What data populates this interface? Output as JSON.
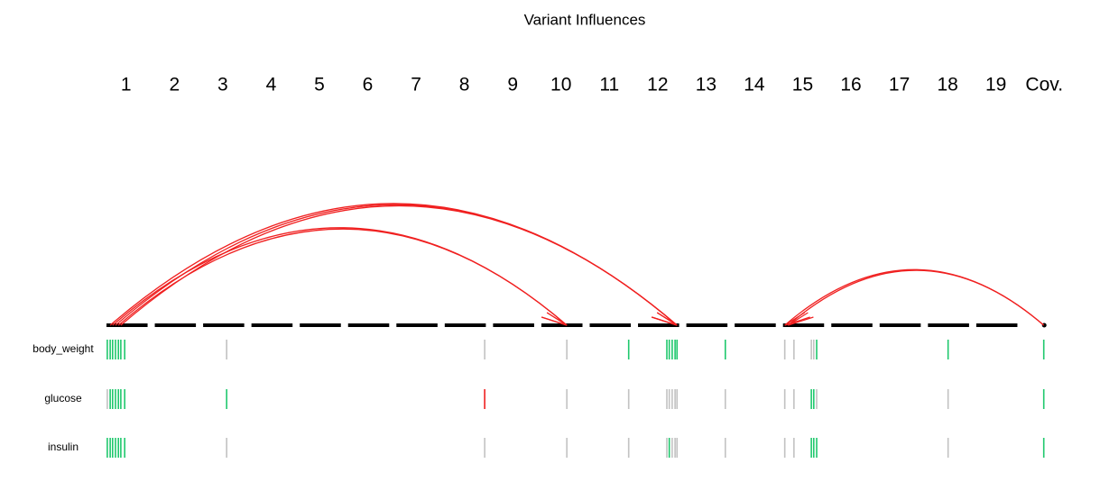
{
  "chart_data": {
    "type": "variant-influence",
    "title": "Variant Influences",
    "categories": [
      "1",
      "2",
      "3",
      "4",
      "5",
      "6",
      "7",
      "8",
      "9",
      "10",
      "11",
      "12",
      "13",
      "14",
      "15",
      "16",
      "17",
      "18",
      "19",
      "Cov."
    ],
    "xlim": [
      0,
      20
    ],
    "x": [
      0.11,
      0.17,
      0.22,
      0.28,
      0.34,
      0.39,
      0.47,
      2.58,
      7.92,
      9.62,
      10.9,
      11.69,
      11.74,
      11.8,
      11.86,
      11.9,
      12.9,
      14.13,
      14.32,
      14.68,
      14.73,
      14.79,
      17.51,
      19.49
    ],
    "effect_colors": {
      "1": "#1fc86d",
      "0": "#c2c2c2",
      "-1": "#ee2020"
    },
    "series": [
      {
        "name": "body_weight",
        "values": [
          1,
          1,
          1,
          1,
          1,
          1,
          1,
          0,
          0,
          0,
          1,
          1,
          1,
          1,
          1,
          1,
          1,
          0,
          0,
          0,
          0,
          1,
          1,
          1
        ]
      },
      {
        "name": "glucose",
        "values": [
          0,
          1,
          1,
          1,
          1,
          1,
          1,
          1,
          -1,
          0,
          0,
          0,
          0,
          0,
          0,
          0,
          0,
          0,
          0,
          1,
          1,
          0,
          0,
          1
        ]
      },
      {
        "name": "insulin",
        "values": [
          1,
          1,
          1,
          1,
          1,
          1,
          1,
          0,
          0,
          0,
          0,
          0,
          1,
          0,
          0,
          0,
          0,
          0,
          0,
          1,
          1,
          1,
          0,
          1
        ]
      }
    ],
    "interactions": [
      {
        "source": 0.17,
        "target": 11.9
      },
      {
        "source": 0.28,
        "target": 11.9
      },
      {
        "source": 0.39,
        "target": 11.9
      },
      {
        "source": 0.22,
        "target": 9.62
      },
      {
        "source": 0.34,
        "target": 9.62
      },
      {
        "source": 19.49,
        "target": 14.13
      },
      {
        "source": 19.49,
        "target": 14.2
      }
    ],
    "interaction_color": "#f02020"
  }
}
